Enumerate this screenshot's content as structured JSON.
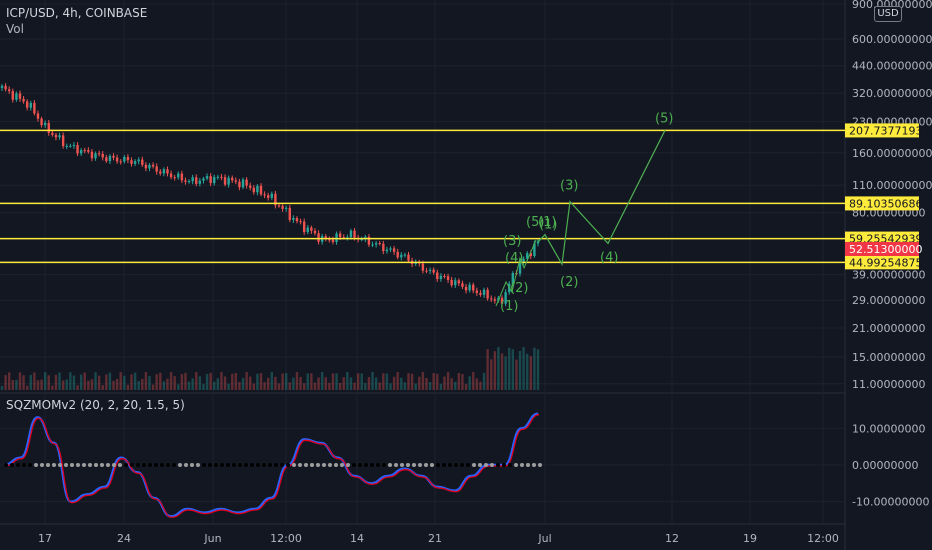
{
  "header": {
    "symbol_line": "ICP/USD, 4h, COINBASE",
    "vol_label": "Vol",
    "indicator_label": "SQZMOMv2 (20, 2, 20, 1.5, 5)",
    "currency_badge": "USD"
  },
  "colors": {
    "background": "#131722",
    "level_line": "#ffeb3b",
    "last_price": "#f23645",
    "wave": "#4caf50",
    "up_candle": "#26a69a",
    "down_candle": "#ef5350",
    "mom_blue": "#2962ff",
    "mom_red": "#e0001b",
    "squeeze_on": "#000000",
    "squeeze_off": "#9e9e9e"
  },
  "chart_data": [
    {
      "type": "candlestick",
      "scale": "log",
      "ylim": [
        10,
        900
      ],
      "y_ticks": [
        "900.00000000",
        "600.00000000",
        "440.00000000",
        "320.00000000",
        "230.00000000",
        "160.00000000",
        "110.00000000",
        "80.00000000",
        "39.00000000",
        "29.00000000",
        "21.00000000",
        "15.00000000",
        "11.00000000"
      ],
      "x_ticks": [
        "17",
        "24",
        "Jun",
        "12:00",
        "14",
        "21",
        "Jul",
        "12",
        "19",
        "12:00"
      ],
      "horizontal_levels": [
        {
          "label": "207.73771933",
          "value": 207.73771933
        },
        {
          "label": "89.10350686",
          "value": 89.10350686
        },
        {
          "label": "59.25542939",
          "value": 59.25542939
        },
        {
          "label": "44.99254875",
          "value": 44.99254875
        }
      ],
      "last_price": {
        "label": "52.51300000",
        "value": 52.513
      },
      "price_path": [
        {
          "t": 0,
          "p": 340
        },
        {
          "t": 0.05,
          "p": 280
        },
        {
          "t": 0.08,
          "p": 215
        },
        {
          "t": 0.12,
          "p": 175
        },
        {
          "t": 0.16,
          "p": 160
        },
        {
          "t": 0.2,
          "p": 150
        },
        {
          "t": 0.25,
          "p": 145
        },
        {
          "t": 0.3,
          "p": 128
        },
        {
          "t": 0.35,
          "p": 115
        },
        {
          "t": 0.4,
          "p": 120
        },
        {
          "t": 0.45,
          "p": 112
        },
        {
          "t": 0.5,
          "p": 96
        },
        {
          "t": 0.55,
          "p": 72
        },
        {
          "t": 0.6,
          "p": 58
        },
        {
          "t": 0.65,
          "p": 62
        },
        {
          "t": 0.7,
          "p": 55
        },
        {
          "t": 0.75,
          "p": 48
        },
        {
          "t": 0.8,
          "p": 40
        },
        {
          "t": 0.85,
          "p": 35
        },
        {
          "t": 0.9,
          "p": 31
        },
        {
          "t": 0.93,
          "p": 28
        },
        {
          "t": 0.96,
          "p": 42
        },
        {
          "t": 1.0,
          "p": 57
        }
      ],
      "elliott_projection": [
        {
          "label": "(1)",
          "value": 62
        },
        {
          "label": "(2)",
          "value": 44
        },
        {
          "label": "(3)",
          "value": 91
        },
        {
          "label": "(4)",
          "value": 56
        },
        {
          "label": "(5)",
          "value": 208
        }
      ],
      "minor_wave_labels": [
        "(1)",
        "(2)",
        "(3)",
        "(4)",
        "(5)",
        "(1)"
      ]
    },
    {
      "type": "line",
      "indicator": "SQZMOMv2",
      "ylim": [
        -15,
        15
      ],
      "y_ticks": [
        "10.00000000",
        "0.00000000",
        "-10.00000000"
      ],
      "series": [
        {
          "values": [
            0,
            2,
            13,
            6,
            -10,
            -8,
            -6,
            2,
            -2,
            -9,
            -14,
            -12,
            -13,
            -12,
            -13,
            -12,
            -9,
            0,
            7,
            6,
            2,
            -3,
            -5,
            -3,
            -1,
            -3,
            -6,
            -7,
            -3,
            0,
            0,
            10,
            14
          ]
        }
      ],
      "squeeze_dots": "zero-line"
    }
  ]
}
